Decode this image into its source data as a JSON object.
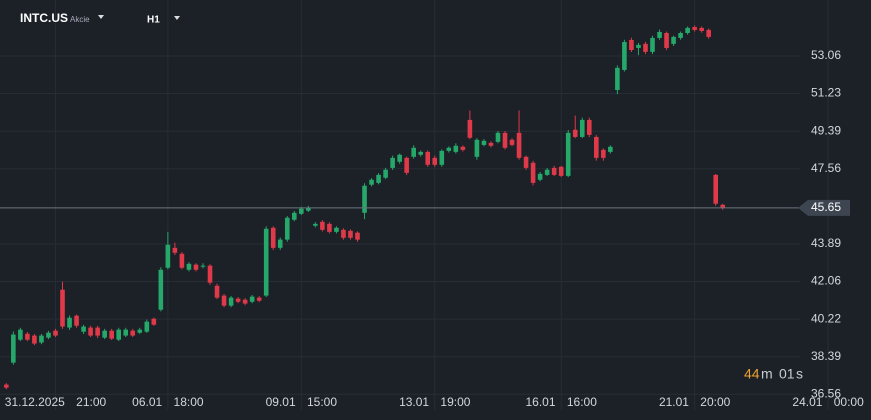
{
  "header": {
    "symbol": "INTC.US",
    "asset_class": "Akcie",
    "timeframe": "H1"
  },
  "countdown": {
    "minutes": "44",
    "minutes_unit": "m",
    "seconds": "01",
    "seconds_unit": "s"
  },
  "chart_data": {
    "type": "candlestick",
    "up_color": "#26a86b",
    "down_color": "#e0394a",
    "grid": true,
    "ylim": [
      35.79,
      55.79
    ],
    "yticks": [
      36.56,
      38.39,
      40.22,
      42.06,
      43.89,
      47.56,
      49.39,
      51.23,
      53.06
    ],
    "current_price": 45.65,
    "xticks": [
      {
        "value": 7,
        "label": "31.12.2025 21:00"
      },
      {
        "value": 23,
        "label": "06.01 18:00"
      },
      {
        "value": 42,
        "label": "09.01 15:00"
      },
      {
        "value": 61,
        "label": "13.01 19:00"
      },
      {
        "value": 79,
        "label": "16.01 16:00"
      },
      {
        "value": 98,
        "label": "21.01 20:00"
      },
      {
        "value": 117,
        "label": "24.01 00:00"
      }
    ],
    "xlim": [
      -0.9,
      113
    ],
    "open": [
      37.03,
      38.1,
      39.22,
      39.51,
      39.42,
      39.08,
      39.32,
      39.66,
      41.66,
      39.81,
      40.39,
      39.61,
      39.81,
      39.81,
      39.32,
      39.66,
      39.22,
      39.42,
      39.66,
      39.56,
      39.61,
      40.24,
      40.68,
      42.73,
      43.7,
      43.41,
      42.63,
      42.88,
      42.78,
      42.83,
      41.85,
      41.37,
      40.88,
      41.22,
      41.17,
      41.07,
      41.27,
      41.37,
      44.68,
      43.7,
      44.1,
      45.07,
      45.36,
      45.51,
      44.78,
      44.97,
      44.87,
      44.48,
      44.58,
      44.53,
      44.44,
      45.41,
      46.78,
      46.87,
      47.12,
      47.6,
      47.9,
      48.09,
      48.14,
      48.24,
      48.38,
      48.09,
      47.75,
      48.43,
      48.38,
      48.63,
      49.94,
      48.14,
      48.72,
      48.82,
      48.87,
      49.31,
      48.97,
      49.31,
      48.14,
      47.85,
      47.02,
      47.26,
      47.6,
      47.65,
      47.21,
      49.46,
      49.11,
      49.94,
      49.11,
      48.48,
      48.38,
      51.4,
      52.38,
      53.84,
      53.45,
      53.65,
      53.26,
      53.94,
      54.18,
      53.65,
      53.94,
      54.18,
      54.47,
      54.43,
      54.33,
      47.26,
      45.8
    ],
    "high": [
      37.1,
      39.62,
      39.8,
      39.6,
      39.5,
      39.5,
      39.65,
      39.75,
      42.05,
      40.4,
      40.45,
      39.95,
      39.9,
      39.9,
      39.75,
      39.75,
      39.8,
      39.8,
      39.75,
      39.8,
      40.2,
      40.3,
      42.75,
      44.48,
      43.95,
      43.5,
      43.0,
      42.95,
      42.95,
      42.9,
      41.95,
      41.45,
      41.35,
      41.3,
      41.25,
      41.4,
      41.35,
      44.75,
      44.75,
      44.2,
      45.25,
      45.5,
      45.7,
      45.75,
      44.95,
      45.05,
      44.95,
      44.75,
      44.65,
      44.6,
      44.5,
      46.85,
      47.1,
      47.35,
      47.6,
      48.2,
      48.3,
      48.15,
      48.7,
      48.45,
      48.45,
      48.2,
      48.5,
      48.65,
      48.8,
      48.7,
      50.4,
      49.05,
      49.0,
      48.9,
      49.4,
      49.4,
      49.05,
      50.4,
      48.2,
      47.95,
      47.4,
      47.6,
      47.7,
      47.7,
      49.45,
      50.15,
      50.05,
      50.05,
      49.2,
      48.55,
      48.7,
      52.6,
      53.85,
      53.95,
      53.7,
      53.75,
      54.05,
      54.35,
      54.25,
      54.05,
      54.25,
      54.5,
      54.55,
      54.5,
      54.4,
      47.3,
      45.85
    ],
    "low": [
      36.8,
      38.0,
      39.15,
      39.15,
      38.95,
      39.0,
      39.25,
      39.35,
      39.75,
      39.7,
      39.8,
      39.5,
      39.35,
      39.3,
      39.25,
      39.2,
      39.15,
      39.35,
      39.35,
      39.5,
      39.55,
      39.9,
      40.6,
      42.65,
      43.35,
      42.65,
      42.55,
      42.55,
      42.7,
      41.9,
      41.2,
      40.8,
      40.8,
      41.0,
      40.9,
      41.0,
      41.05,
      41.3,
      43.6,
      43.6,
      44.0,
      45.0,
      45.3,
      45.45,
      44.7,
      44.5,
      44.4,
      44.4,
      44.1,
      44.1,
      44.0,
      45.1,
      46.7,
      46.8,
      47.05,
      47.5,
      47.8,
      47.25,
      48.05,
      48.15,
      47.65,
      47.65,
      47.65,
      48.35,
      48.3,
      48.4,
      49.0,
      48.0,
      48.65,
      48.6,
      48.8,
      48.5,
      48.65,
      48.0,
      47.5,
      46.75,
      46.95,
      47.2,
      47.2,
      47.15,
      47.15,
      49.05,
      49.05,
      49.1,
      47.95,
      47.95,
      48.3,
      51.2,
      52.3,
      53.25,
      53.1,
      53.15,
      53.15,
      53.85,
      53.35,
      53.55,
      53.85,
      54.1,
      54.25,
      54.2,
      53.9,
      45.75,
      45.55
    ],
    "close": [
      36.88,
      39.47,
      39.71,
      39.22,
      39.03,
      39.42,
      39.56,
      39.42,
      39.86,
      40.29,
      39.9,
      39.86,
      39.42,
      39.42,
      39.66,
      39.27,
      39.71,
      39.71,
      39.42,
      39.71,
      40.1,
      39.95,
      42.63,
      43.85,
      43.46,
      42.73,
      42.92,
      42.63,
      42.83,
      42.0,
      41.27,
      40.88,
      41.27,
      41.07,
      40.98,
      41.32,
      41.12,
      44.63,
      43.7,
      44.1,
      45.17,
      45.41,
      45.61,
      45.65,
      44.87,
      44.58,
      44.48,
      44.68,
      44.19,
      44.19,
      44.1,
      46.73,
      47.02,
      47.26,
      47.51,
      48.09,
      48.24,
      47.36,
      48.58,
      48.38,
      47.75,
      47.75,
      48.43,
      48.58,
      48.68,
      48.48,
      49.07,
      48.97,
      48.92,
      48.68,
      49.31,
      48.58,
      48.72,
      48.09,
      47.6,
      46.87,
      47.31,
      47.51,
      47.26,
      47.21,
      49.31,
      49.11,
      49.94,
      49.21,
      48.09,
      48.09,
      48.63,
      52.48,
      53.74,
      53.35,
      53.6,
      53.26,
      53.94,
      54.23,
      53.45,
      53.99,
      54.18,
      54.43,
      54.33,
      54.28,
      53.99,
      45.85,
      45.65
    ]
  }
}
